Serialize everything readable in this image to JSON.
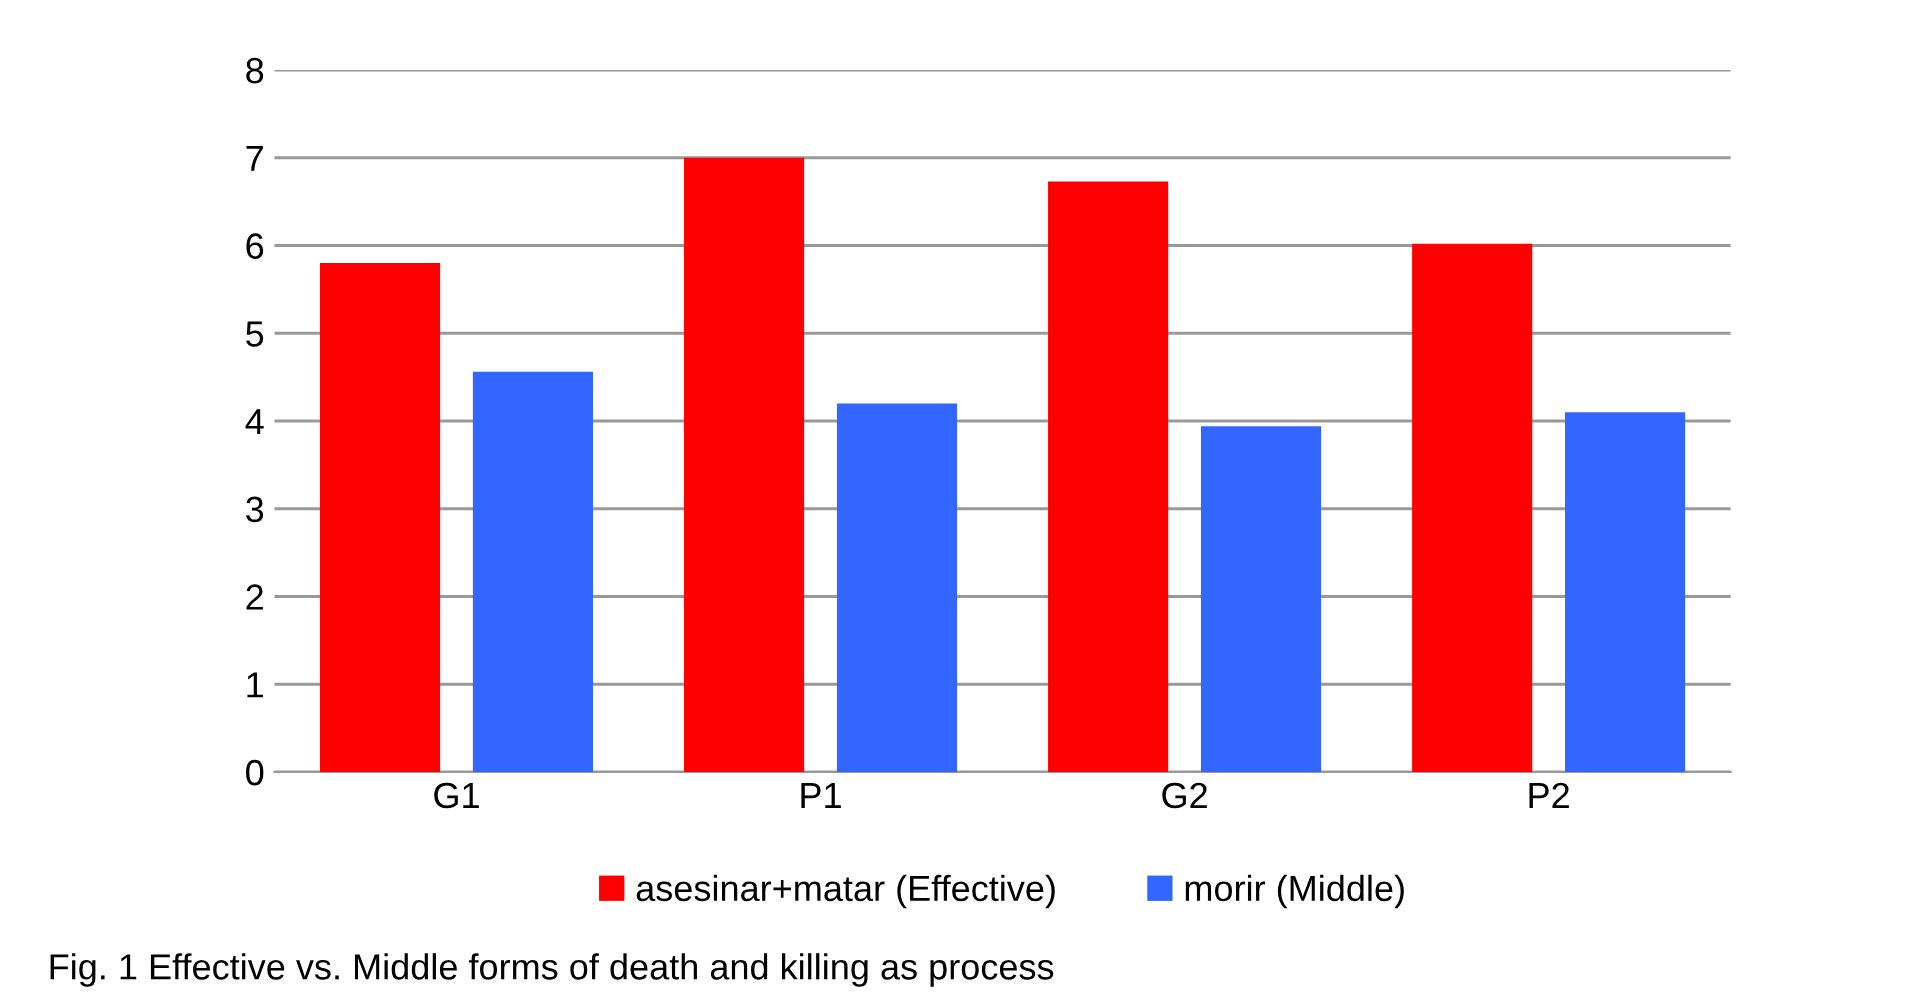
{
  "chart_data": {
    "type": "bar",
    "categories": [
      "G1",
      "P1",
      "G2",
      "P2"
    ],
    "series": [
      {
        "name": "asesinar+matar (Effective)",
        "color": "#ff0000",
        "values": [
          5.8,
          7.0,
          6.73,
          6.02
        ]
      },
      {
        "name": "morir (Middle)",
        "color": "#3366ff",
        "values": [
          4.56,
          4.2,
          3.94,
          4.1
        ]
      }
    ],
    "ylim": [
      0,
      8
    ],
    "yticks": [
      0,
      1,
      2,
      3,
      4,
      5,
      6,
      7,
      8
    ],
    "grid": "y",
    "legend": "bottom",
    "annotations": [
      "Fig. 1 Effective vs. Middle forms of death and killing as process"
    ]
  }
}
